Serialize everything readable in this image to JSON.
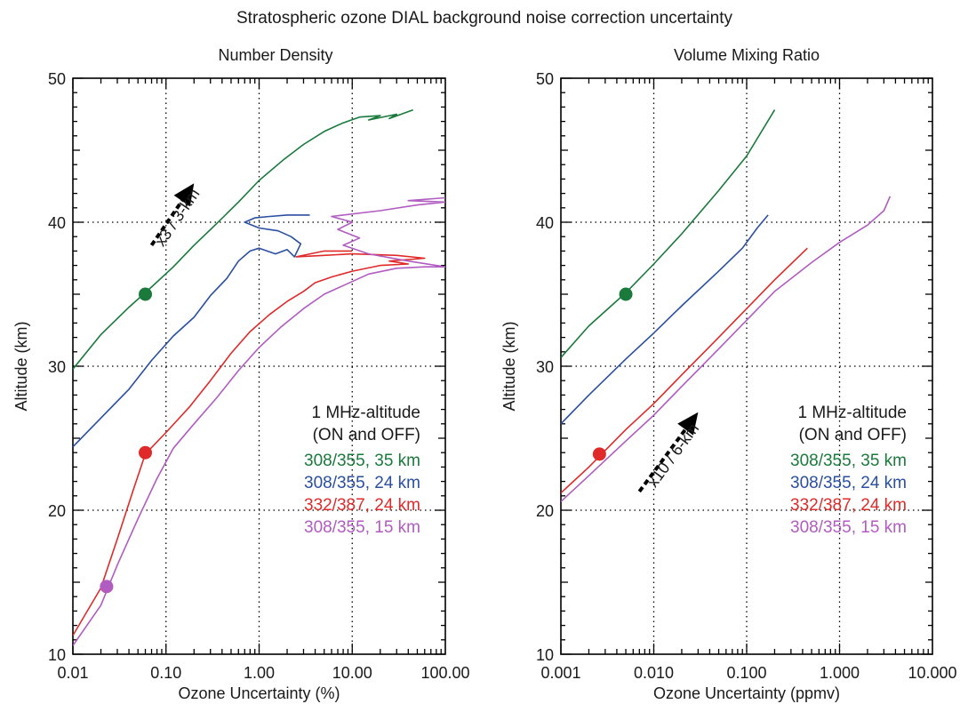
{
  "figure_title": "Stratospheric ozone DIAL background noise correction uncertainty",
  "colors": {
    "green": "#1a7a3c",
    "blue": "#2b4fa0",
    "red": "#e02a2a",
    "purple": "#b05cc0",
    "text": "#1a1a1a",
    "arrow": "#000000"
  },
  "chart_data": [
    {
      "type": "line",
      "title": "Number Density",
      "xlabel": "Ozone Uncertainty (%)",
      "ylabel": "Altitude (km)",
      "x_scale": "log",
      "xlim": [
        0.01,
        100
      ],
      "ylim": [
        10,
        50
      ],
      "x_ticks": [
        0.01,
        0.1,
        1,
        10,
        100
      ],
      "x_tick_labels": [
        "0.01",
        "0.10",
        "1.00",
        "10.00",
        "100.00"
      ],
      "y_ticks": [
        10,
        20,
        30,
        40,
        50
      ],
      "y_tick_labels": [
        "10",
        "20",
        "30",
        "40",
        "50"
      ],
      "grid": "dotted at major ticks",
      "legend_title": [
        "1 MHz-altitude",
        "(ON and OFF)"
      ],
      "legend_placement": "right",
      "series": [
        {
          "name": "308/355, 35 km",
          "color_key": "green",
          "points": [
            [
              0.01,
              29.8
            ],
            [
              0.02,
              32.2
            ],
            [
              0.04,
              34.1
            ],
            [
              0.07,
              35.5
            ],
            [
              0.12,
              36.9
            ],
            [
              0.2,
              38.4
            ],
            [
              0.35,
              39.9
            ],
            [
              0.6,
              41.4
            ],
            [
              1.0,
              42.9
            ],
            [
              1.8,
              44.3
            ],
            [
              3.0,
              45.4
            ],
            [
              5.0,
              46.3
            ],
            [
              8.0,
              46.9
            ],
            [
              12.0,
              47.3
            ],
            [
              20.0,
              47.4
            ],
            [
              15.0,
              47.1
            ],
            [
              30.0,
              47.5
            ],
            [
              25.0,
              47.2
            ],
            [
              45.0,
              47.8
            ]
          ],
          "marker": [
            0.06,
            35
          ]
        },
        {
          "name": "308/355, 24 km",
          "color_key": "blue",
          "points": [
            [
              0.01,
              24.4
            ],
            [
              0.02,
              26.4
            ],
            [
              0.04,
              28.4
            ],
            [
              0.07,
              30.4
            ],
            [
              0.12,
              32.1
            ],
            [
              0.2,
              33.4
            ],
            [
              0.3,
              34.9
            ],
            [
              0.45,
              36.1
            ],
            [
              0.6,
              37.3
            ],
            [
              0.8,
              38.0
            ],
            [
              1.0,
              38.2
            ],
            [
              1.5,
              37.8
            ],
            [
              2.0,
              38.1
            ],
            [
              2.4,
              37.6
            ],
            [
              2.8,
              38.5
            ],
            [
              2.2,
              39.0
            ],
            [
              1.6,
              39.4
            ],
            [
              1.0,
              39.6
            ],
            [
              0.7,
              40.0
            ],
            [
              0.9,
              40.3
            ],
            [
              1.3,
              40.4
            ],
            [
              2.0,
              40.5
            ],
            [
              3.5,
              40.5
            ]
          ]
        },
        {
          "name": "332/387, 24 km",
          "color_key": "red",
          "points": [
            [
              0.01,
              11.3
            ],
            [
              0.02,
              14.6
            ],
            [
              0.03,
              18.0
            ],
            [
              0.045,
              21.5
            ],
            [
              0.06,
              23.9
            ],
            [
              0.1,
              25.4
            ],
            [
              0.18,
              27.2
            ],
            [
              0.3,
              29.0
            ],
            [
              0.5,
              30.9
            ],
            [
              0.8,
              32.4
            ],
            [
              1.3,
              33.6
            ],
            [
              2.0,
              34.5
            ],
            [
              3.0,
              35.2
            ],
            [
              4.0,
              35.8
            ],
            [
              6.0,
              36.2
            ],
            [
              10.0,
              36.6
            ],
            [
              20.0,
              37.0
            ],
            [
              40.0,
              37.1
            ],
            [
              25.0,
              37.3
            ],
            [
              60.0,
              37.5
            ],
            [
              30.0,
              37.7
            ],
            [
              10.0,
              37.8
            ],
            [
              5.0,
              37.7
            ],
            [
              2.5,
              37.6
            ],
            [
              5.0,
              38.0
            ],
            [
              10.0,
              38.0
            ]
          ],
          "marker": [
            0.06,
            24
          ]
        },
        {
          "name": "308/355, 15 km",
          "color_key": "purple",
          "points": [
            [
              0.01,
              10.6
            ],
            [
              0.02,
              13.4
            ],
            [
              0.03,
              16.2
            ],
            [
              0.05,
              19.4
            ],
            [
              0.08,
              22.2
            ],
            [
              0.12,
              24.3
            ],
            [
              0.2,
              26.0
            ],
            [
              0.35,
              27.8
            ],
            [
              0.6,
              29.7
            ],
            [
              1.0,
              31.3
            ],
            [
              1.7,
              32.7
            ],
            [
              3.0,
              34.0
            ],
            [
              5.0,
              35.0
            ],
            [
              8.0,
              35.6
            ],
            [
              15.0,
              36.4
            ],
            [
              30.0,
              36.8
            ],
            [
              60.0,
              36.9
            ],
            [
              100.0,
              36.9
            ],
            [
              40.0,
              37.3
            ],
            [
              15.0,
              37.8
            ],
            [
              8.0,
              38.4
            ],
            [
              12.0,
              38.9
            ],
            [
              7.0,
              39.5
            ],
            [
              10.0,
              40.0
            ],
            [
              6.0,
              40.4
            ],
            [
              20.0,
              40.8
            ],
            [
              50.0,
              41.2
            ],
            [
              100.0,
              41.4
            ],
            [
              40.0,
              41.5
            ],
            [
              100.0,
              41.7
            ]
          ],
          "marker": [
            0.023,
            14.7
          ]
        }
      ],
      "arrow": {
        "label": "x3 / 3-km",
        "from": [
          0.07,
          38.4
        ],
        "to": [
          0.2,
          42.7
        ]
      }
    },
    {
      "type": "line",
      "title": "Volume Mixing Ratio",
      "xlabel": "Ozone Uncertainty (ppmv)",
      "ylabel": "Altitude (km)",
      "x_scale": "log",
      "xlim": [
        0.001,
        10
      ],
      "ylim": [
        10,
        50
      ],
      "x_ticks": [
        0.001,
        0.01,
        0.1,
        1,
        10
      ],
      "x_tick_labels": [
        "0.001",
        "0.010",
        "0.100",
        "1.000",
        "10.000"
      ],
      "y_ticks": [
        10,
        20,
        30,
        40,
        50
      ],
      "y_tick_labels": [
        "10",
        "20",
        "30",
        "40",
        "50"
      ],
      "grid": "dotted at major ticks",
      "legend_title": [
        "1 MHz-altitude",
        "(ON and OFF)"
      ],
      "legend_placement": "right",
      "series": [
        {
          "name": "308/355, 35 km",
          "color_key": "green",
          "points": [
            [
              0.001,
              30.6
            ],
            [
              0.002,
              32.8
            ],
            [
              0.005,
              35.1
            ],
            [
              0.01,
              37.1
            ],
            [
              0.02,
              39.2
            ],
            [
              0.05,
              42.2
            ],
            [
              0.1,
              44.6
            ],
            [
              0.2,
              47.8
            ]
          ],
          "marker": [
            0.005,
            35
          ]
        },
        {
          "name": "308/355, 24 km",
          "color_key": "blue",
          "points": [
            [
              0.001,
              26.0
            ],
            [
              0.002,
              28.0
            ],
            [
              0.005,
              30.5
            ],
            [
              0.01,
              32.3
            ],
            [
              0.02,
              34.2
            ],
            [
              0.05,
              36.6
            ],
            [
              0.09,
              38.2
            ],
            [
              0.13,
              39.6
            ],
            [
              0.17,
              40.5
            ]
          ]
        },
        {
          "name": "332/387, 24 km",
          "color_key": "red",
          "points": [
            [
              0.001,
              21.2
            ],
            [
              0.002,
              23.0
            ],
            [
              0.005,
              25.6
            ],
            [
              0.01,
              27.4
            ],
            [
              0.02,
              29.4
            ],
            [
              0.05,
              32.0
            ],
            [
              0.1,
              34.0
            ],
            [
              0.2,
              36.0
            ],
            [
              0.45,
              38.2
            ]
          ],
          "marker": [
            0.0026,
            23.9
          ]
        },
        {
          "name": "308/355, 15 km",
          "color_key": "purple",
          "points": [
            [
              0.001,
              20.6
            ],
            [
              0.002,
              22.4
            ],
            [
              0.005,
              24.8
            ],
            [
              0.01,
              26.6
            ],
            [
              0.02,
              28.6
            ],
            [
              0.05,
              31.2
            ],
            [
              0.1,
              33.2
            ],
            [
              0.2,
              35.2
            ],
            [
              0.5,
              37.2
            ],
            [
              1.0,
              38.6
            ],
            [
              2.0,
              39.8
            ],
            [
              3.0,
              40.8
            ],
            [
              3.5,
              41.8
            ]
          ]
        }
      ],
      "arrow": {
        "label": "x10 / 6-km",
        "from": [
          0.007,
          21.3
        ],
        "to": [
          0.03,
          26.8
        ]
      }
    }
  ]
}
